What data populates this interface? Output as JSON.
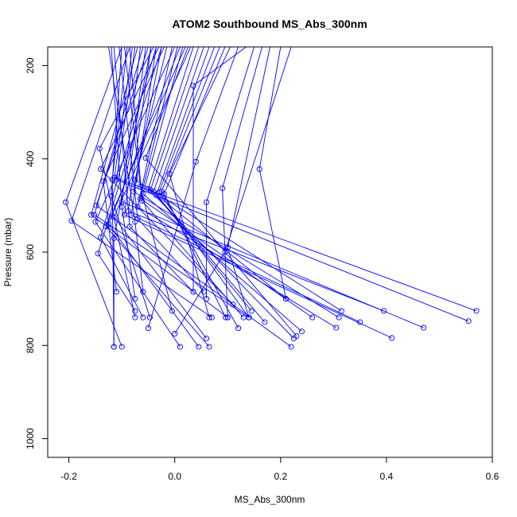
{
  "chart_data": {
    "type": "line",
    "title": "ATOM2 Southbound MS_Abs_300nm",
    "xlabel": "MS_Abs_300nm",
    "ylabel": "Pressure (mbar)",
    "xlim": [
      -0.24,
      0.6
    ],
    "ylim": [
      1040,
      160
    ],
    "y_reversed": true,
    "x_ticks": [
      -0.2,
      0.0,
      0.2,
      0.4,
      0.6
    ],
    "x_tick_labels": [
      "-0.2",
      "0.0",
      "0.2",
      "0.4",
      "0.6"
    ],
    "y_ticks": [
      200,
      400,
      600,
      800,
      1000
    ],
    "y_tick_labels": [
      "200",
      "400",
      "600",
      "800",
      "1000"
    ],
    "line_color": "#0000ff",
    "marker": "open-circle",
    "grid": false,
    "legend": "none",
    "series": [
      {
        "x": [
          -0.1,
          -0.206,
          -0.1
        ],
        "y": [
          160,
          493,
          803
        ]
      },
      {
        "x": [
          -0.085,
          -0.195,
          0.07
        ],
        "y": [
          160,
          533,
          740
        ]
      },
      {
        "x": [
          -0.07,
          -0.158,
          0.1
        ],
        "y": [
          160,
          520,
          740
        ]
      },
      {
        "x": [
          -0.06,
          -0.152,
          0.14
        ],
        "y": [
          160,
          520,
          740
        ]
      },
      {
        "x": [
          -0.05,
          -0.148,
          0.22
        ],
        "y": [
          160,
          500,
          803
        ]
      },
      {
        "x": [
          -0.04,
          -0.142,
          -0.075
        ],
        "y": [
          160,
          378,
          740
        ]
      },
      {
        "x": [
          -0.03,
          -0.14,
          0.11
        ],
        "y": [
          160,
          422,
          712
        ]
      },
      {
        "x": [
          -0.02,
          -0.135,
          -0.11
        ],
        "y": [
          160,
          448,
          685
        ]
      },
      {
        "x": [
          -0.1,
          -0.12,
          -0.047
        ],
        "y": [
          160,
          480,
          740
        ]
      },
      {
        "x": [
          -0.09,
          -0.118,
          -0.115
        ],
        "y": [
          160,
          445,
          803
        ]
      },
      {
        "x": [
          -0.08,
          -0.114,
          0.57
        ],
        "y": [
          160,
          440,
          726
        ]
      },
      {
        "x": [
          -0.075,
          -0.11,
          0.555
        ],
        "y": [
          160,
          445,
          748
        ]
      },
      {
        "x": [
          -0.065,
          -0.1,
          0.47
        ],
        "y": [
          160,
          492,
          762
        ]
      },
      {
        "x": [
          -0.055,
          -0.095,
          0.41
        ],
        "y": [
          160,
          520,
          784
        ]
      },
      {
        "x": [
          -0.045,
          -0.088,
          0.395
        ],
        "y": [
          160,
          512,
          726
        ]
      },
      {
        "x": [
          -0.035,
          -0.082,
          0.35
        ],
        "y": [
          160,
          520,
          750
        ]
      },
      {
        "x": [
          -0.025,
          -0.078,
          0.31
        ],
        "y": [
          160,
          470,
          740
        ]
      },
      {
        "x": [
          -0.015,
          -0.075,
          0.315
        ],
        "y": [
          160,
          445,
          726
        ]
      },
      {
        "x": [
          -0.005,
          -0.07,
          0.305
        ],
        "y": [
          160,
          503,
          762
        ]
      },
      {
        "x": [
          0.005,
          -0.065,
          0.26
        ],
        "y": [
          160,
          485,
          740
        ]
      },
      {
        "x": [
          0.015,
          -0.06,
          0.24
        ],
        "y": [
          160,
          475,
          770
        ]
      },
      {
        "x": [
          0.025,
          -0.055,
          0.23
        ],
        "y": [
          160,
          398,
          780
        ]
      },
      {
        "x": [
          0.035,
          -0.05,
          0.225
        ],
        "y": [
          160,
          464,
          785
        ]
      },
      {
        "x": [
          0.045,
          -0.046,
          0.21
        ],
        "y": [
          160,
          467,
          700
        ]
      },
      {
        "x": [
          0.055,
          -0.04,
          0.17
        ],
        "y": [
          160,
          470,
          750
        ]
      },
      {
        "x": [
          0.065,
          -0.035,
          0.145
        ],
        "y": [
          160,
          478,
          726
        ]
      },
      {
        "x": [
          0.075,
          -0.03,
          0.14
        ],
        "y": [
          160,
          472,
          740
        ]
      },
      {
        "x": [
          0.085,
          -0.025,
          0.12
        ],
        "y": [
          160,
          470,
          763
        ]
      },
      {
        "x": [
          0.095,
          -0.02,
          0.096
        ],
        "y": [
          160,
          475,
          740
        ]
      },
      {
        "x": [
          0.105,
          -0.01,
          0.065
        ],
        "y": [
          160,
          432,
          740
        ]
      },
      {
        "x": [
          0.12,
          0.04,
          -0.05
        ],
        "y": [
          160,
          406,
          763
        ]
      },
      {
        "x": [
          0.135,
          0.035,
          0.035
        ],
        "y": [
          160,
          243,
          685
        ]
      },
      {
        "x": [
          0.15,
          0.06,
          0.06
        ],
        "y": [
          160,
          493,
          700
        ]
      },
      {
        "x": [
          0.165,
          0.09,
          0.1
        ],
        "y": [
          160,
          463,
          740
        ]
      },
      {
        "x": [
          0.18,
          0.1,
          0.14
        ],
        "y": [
          160,
          590,
          740
        ]
      },
      {
        "x": [
          0.2,
          0.16,
          0.21
        ],
        "y": [
          160,
          422,
          700
        ]
      },
      {
        "x": [
          0.22,
          0.095,
          0.0
        ],
        "y": [
          160,
          600,
          775
        ]
      },
      {
        "x": [
          -0.125,
          -0.075,
          -0.06
        ],
        "y": [
          160,
          535,
          685
        ]
      },
      {
        "x": [
          -0.115,
          -0.085,
          0.035
        ],
        "y": [
          160,
          545,
          685
        ]
      },
      {
        "x": [
          -0.105,
          -0.07,
          0.055
        ],
        "y": [
          160,
          528,
          685
        ]
      },
      {
        "x": [
          -0.095,
          -0.065,
          -0.005
        ],
        "y": [
          160,
          460,
          726
        ]
      },
      {
        "x": [
          -0.085,
          -0.062,
          0.13
        ],
        "y": [
          160,
          490,
          740
        ]
      },
      {
        "x": [
          -0.045,
          -0.115,
          -0.115
        ],
        "y": [
          160,
          570,
          803
        ]
      },
      {
        "x": [
          -0.035,
          -0.14,
          -0.06
        ],
        "y": [
          160,
          568,
          740
        ]
      },
      {
        "x": [
          -0.025,
          -0.145,
          -0.075
        ],
        "y": [
          160,
          603,
          726
        ]
      },
      {
        "x": [
          0.0,
          -0.15,
          0.01
        ],
        "y": [
          160,
          535,
          803
        ]
      },
      {
        "x": [
          0.01,
          -0.125,
          0.045
        ],
        "y": [
          160,
          540,
          803
        ]
      },
      {
        "x": [
          0.02,
          -0.13,
          0.065
        ],
        "y": [
          160,
          545,
          803
        ]
      },
      {
        "x": [
          0.03,
          -0.115,
          0.06
        ],
        "y": [
          160,
          525,
          785
        ]
      },
      {
        "x": [
          -0.12,
          -0.1,
          -0.075
        ],
        "y": [
          160,
          503,
          700
        ]
      }
    ]
  }
}
